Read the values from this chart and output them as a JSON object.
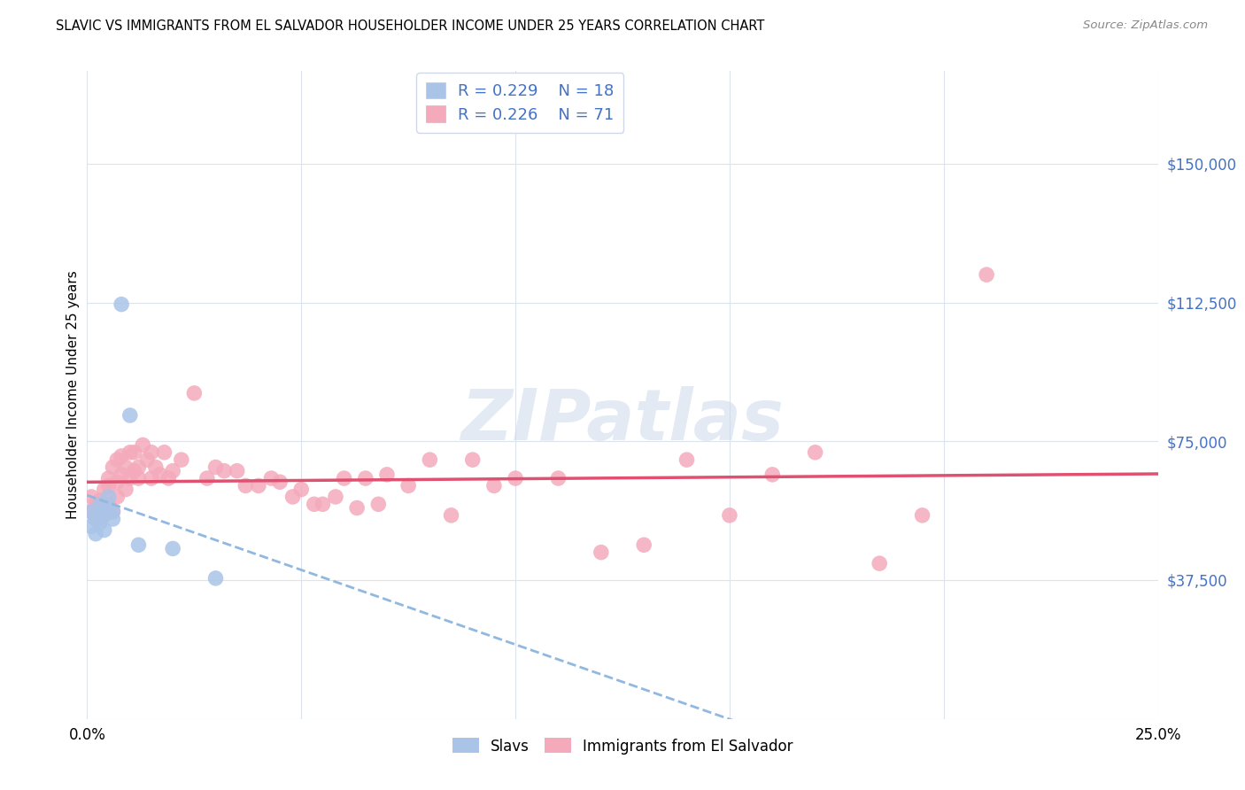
{
  "title": "SLAVIC VS IMMIGRANTS FROM EL SALVADOR HOUSEHOLDER INCOME UNDER 25 YEARS CORRELATION CHART",
  "source": "Source: ZipAtlas.com",
  "ylabel": "Householder Income Under 25 years",
  "xlim": [
    0.0,
    0.25
  ],
  "ylim": [
    0,
    175000
  ],
  "ytick_positions": [
    0,
    37500,
    75000,
    112500,
    150000
  ],
  "ytick_labels": [
    "",
    "$37,500",
    "$75,000",
    "$112,500",
    "$150,000"
  ],
  "background_color": "#ffffff",
  "grid_color": "#dde3ec",
  "slavs_color": "#aac4e8",
  "salvador_color": "#f4aabb",
  "trend_slavs_color": "#90b8e0",
  "trend_salvador_color": "#e05070",
  "legend_R_slavs": "R = 0.229",
  "legend_N_slavs": "N = 18",
  "legend_R_salvador": "R = 0.226",
  "legend_N_salvador": "N = 71",
  "slavs_x": [
    0.001,
    0.001,
    0.002,
    0.002,
    0.003,
    0.003,
    0.003,
    0.004,
    0.004,
    0.005,
    0.005,
    0.006,
    0.006,
    0.008,
    0.01,
    0.012,
    0.02,
    0.03
  ],
  "slavs_y": [
    56000,
    52000,
    54000,
    50000,
    56000,
    53000,
    58000,
    55000,
    51000,
    57000,
    60000,
    54000,
    56000,
    112000,
    82000,
    47000,
    46000,
    38000
  ],
  "salvador_x": [
    0.001,
    0.001,
    0.002,
    0.002,
    0.003,
    0.003,
    0.004,
    0.004,
    0.005,
    0.005,
    0.005,
    0.006,
    0.006,
    0.007,
    0.007,
    0.007,
    0.008,
    0.008,
    0.009,
    0.009,
    0.01,
    0.01,
    0.011,
    0.011,
    0.012,
    0.012,
    0.013,
    0.014,
    0.015,
    0.015,
    0.016,
    0.017,
    0.018,
    0.019,
    0.02,
    0.022,
    0.025,
    0.028,
    0.03,
    0.032,
    0.035,
    0.037,
    0.04,
    0.043,
    0.045,
    0.048,
    0.05,
    0.053,
    0.055,
    0.058,
    0.06,
    0.063,
    0.065,
    0.068,
    0.07,
    0.075,
    0.08,
    0.085,
    0.09,
    0.095,
    0.1,
    0.11,
    0.12,
    0.13,
    0.14,
    0.15,
    0.16,
    0.17,
    0.185,
    0.195,
    0.21
  ],
  "salvador_y": [
    56000,
    60000,
    58000,
    54000,
    55000,
    59000,
    57000,
    62000,
    58000,
    63000,
    65000,
    56000,
    68000,
    60000,
    64000,
    70000,
    66000,
    71000,
    62000,
    68000,
    65000,
    72000,
    67000,
    72000,
    65000,
    68000,
    74000,
    70000,
    65000,
    72000,
    68000,
    66000,
    72000,
    65000,
    67000,
    70000,
    88000,
    65000,
    68000,
    67000,
    67000,
    63000,
    63000,
    65000,
    64000,
    60000,
    62000,
    58000,
    58000,
    60000,
    65000,
    57000,
    65000,
    58000,
    66000,
    63000,
    70000,
    55000,
    70000,
    63000,
    65000,
    65000,
    45000,
    47000,
    70000,
    55000,
    66000,
    72000,
    42000,
    55000,
    120000
  ]
}
